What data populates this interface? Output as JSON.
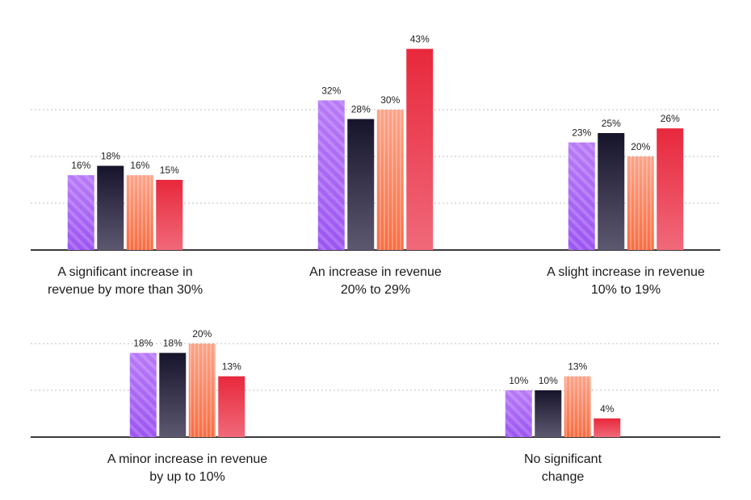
{
  "chart_data": {
    "type": "bar",
    "title": "",
    "title_partial_visible": true,
    "colors": [
      "#b476f5",
      "#1c1a2e",
      "#fb9273",
      "#ea3a4d"
    ],
    "value_suffix": "%",
    "groups": [
      {
        "label_lines": [
          "A significant increase in",
          "revenue by more than 30%"
        ],
        "values": [
          16,
          18,
          16,
          15
        ]
      },
      {
        "label_lines": [
          "An increase in revenue",
          "20% to 29%"
        ],
        "values": [
          32,
          28,
          30,
          43
        ]
      },
      {
        "label_lines": [
          "A slight increase in revenue",
          "10% to 19%"
        ],
        "values": [
          23,
          25,
          20,
          26
        ]
      },
      {
        "label_lines": [
          "A minor increase in revenue",
          "by up to 10%"
        ],
        "values": [
          18,
          18,
          20,
          13
        ]
      },
      {
        "label_lines": [
          "No significant",
          "change"
        ],
        "values": [
          10,
          10,
          13,
          4
        ]
      }
    ],
    "grid": true
  }
}
